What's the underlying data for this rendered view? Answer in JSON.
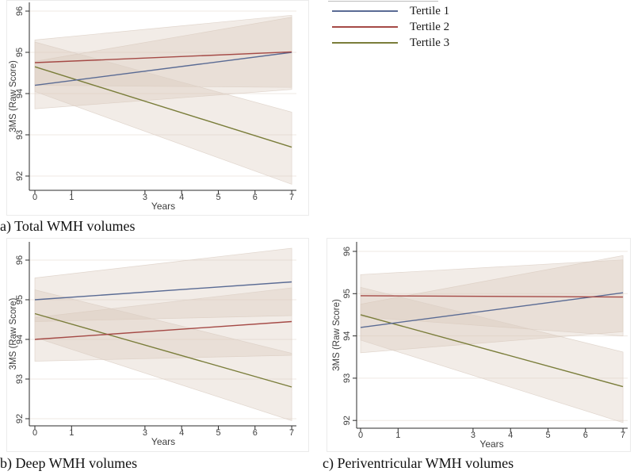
{
  "page": {
    "background": "#ffffff"
  },
  "legend": {
    "items": [
      {
        "label": "Tertile 1",
        "color": "#5a6b94"
      },
      {
        "label": "Tertile 2",
        "color": "#a54a46"
      },
      {
        "label": "Tertile 3",
        "color": "#7a7d3a"
      }
    ]
  },
  "colors": {
    "band_fill": "#d9c8bb",
    "band_stroke": "#dbcec4",
    "grid": "#efe9e3",
    "axis": "#2b2b2b",
    "tick_text": "#3d3d3d",
    "panel_border": "#ebebeb"
  },
  "chart_data": [
    {
      "id": "a",
      "type": "line",
      "caption": "a) Total WMH volumes",
      "xlabel": "Years",
      "ylabel": "3MS (Raw Score)",
      "xticks": [
        0,
        1,
        3,
        4,
        5,
        6,
        7
      ],
      "yticks": [
        92,
        93,
        94,
        95,
        96
      ],
      "xlim": [
        -0.15,
        7.15
      ],
      "ylim": [
        91.65,
        96.2
      ],
      "grid": true,
      "legend_position": "outside-top-right",
      "series": [
        {
          "name": "Tertile 1",
          "x": [
            0,
            7
          ],
          "y": [
            94.2,
            95.0
          ],
          "ci_lo": [
            93.63,
            94.1
          ],
          "ci_hi": [
            94.78,
            95.85
          ]
        },
        {
          "name": "Tertile 2",
          "x": [
            0,
            7
          ],
          "y": [
            94.75,
            95.01
          ],
          "ci_lo": [
            94.2,
            94.15
          ],
          "ci_hi": [
            95.3,
            95.9
          ]
        },
        {
          "name": "Tertile 3",
          "x": [
            0,
            7
          ],
          "y": [
            94.65,
            92.7
          ],
          "ci_lo": [
            94.05,
            91.8
          ],
          "ci_hi": [
            95.25,
            93.55
          ]
        }
      ]
    },
    {
      "id": "b",
      "type": "line",
      "caption": "b) Deep WMH volumes",
      "xlabel": "Years",
      "ylabel": "3MS (Raw Score)",
      "xticks": [
        0,
        1,
        3,
        4,
        5,
        6,
        7
      ],
      "yticks": [
        92,
        93,
        94,
        95,
        96
      ],
      "xlim": [
        -0.15,
        7.15
      ],
      "ylim": [
        91.82,
        96.45
      ],
      "grid": true,
      "series": [
        {
          "name": "Tertile 1",
          "x": [
            0,
            7
          ],
          "y": [
            95.0,
            95.45
          ],
          "ci_lo": [
            94.45,
            94.6
          ],
          "ci_hi": [
            95.55,
            96.3
          ]
        },
        {
          "name": "Tertile 2",
          "x": [
            0,
            7
          ],
          "y": [
            94.0,
            94.45
          ],
          "ci_lo": [
            93.45,
            93.6
          ],
          "ci_hi": [
            94.55,
            95.3
          ]
        },
        {
          "name": "Tertile 3",
          "x": [
            0,
            7
          ],
          "y": [
            94.65,
            92.8
          ],
          "ci_lo": [
            94.05,
            91.95
          ],
          "ci_hi": [
            95.25,
            93.65
          ]
        }
      ]
    },
    {
      "id": "c",
      "type": "line",
      "caption": "c) Periventricular WMH volumes",
      "xlabel": "Years",
      "ylabel": "3MS (Raw Score)",
      "xticks": [
        0,
        1,
        3,
        4,
        5,
        6,
        7
      ],
      "yticks": [
        92,
        93,
        94,
        95,
        96
      ],
      "xlim": [
        -0.15,
        7.15
      ],
      "ylim": [
        91.7,
        96.3
      ],
      "grid": true,
      "series": [
        {
          "name": "Tertile 1",
          "x": [
            0,
            7
          ],
          "y": [
            94.2,
            95.02
          ],
          "ci_lo": [
            93.6,
            94.1
          ],
          "ci_hi": [
            94.75,
            95.9
          ]
        },
        {
          "name": "Tertile 2",
          "x": [
            0,
            7
          ],
          "y": [
            94.95,
            94.92
          ],
          "ci_lo": [
            94.45,
            94.0
          ],
          "ci_hi": [
            95.45,
            95.8
          ]
        },
        {
          "name": "Tertile 3",
          "x": [
            0,
            7
          ],
          "y": [
            94.5,
            92.8
          ],
          "ci_lo": [
            93.9,
            91.95
          ],
          "ci_hi": [
            95.15,
            93.62
          ]
        }
      ]
    }
  ]
}
